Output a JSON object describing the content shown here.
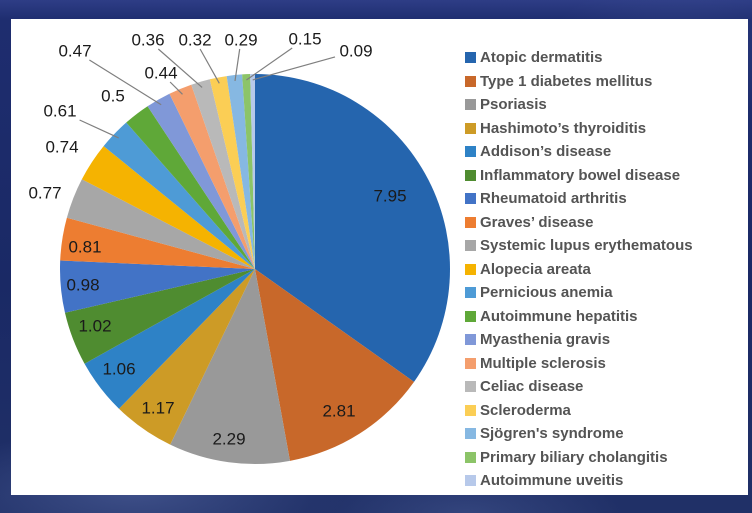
{
  "chart_data": {
    "type": "pie",
    "title": "",
    "categories": [
      "Atopic dermatitis",
      "Type 1 diabetes mellitus",
      "Psoriasis",
      "Hashimoto’s thyroiditis",
      "Addison’s disease",
      "Inflammatory bowel disease",
      "Rheumatoid arthritis",
      "Graves’ disease",
      "Systemic lupus erythematous",
      "Alopecia areata",
      "Pernicious anemia",
      "Autoimmune hepatitis",
      "Myasthenia gravis",
      "Multiple sclerosis",
      "Celiac disease",
      "Scleroderma",
      "Sjögren's syndrome",
      "Primary biliary cholangitis",
      "Autoimmune uveitis"
    ],
    "values": [
      7.95,
      2.81,
      2.29,
      1.17,
      1.06,
      1.02,
      0.98,
      0.81,
      0.77,
      0.74,
      0.61,
      0.5,
      0.47,
      0.44,
      0.36,
      0.32,
      0.29,
      0.15,
      0.09
    ],
    "colors": [
      "#2565AE",
      "#C8682A",
      "#999999",
      "#CD9B26",
      "#2E82C6",
      "#4F8C30",
      "#4273C6",
      "#ED7D31",
      "#A7A7A7",
      "#F5B301",
      "#4E9BD6",
      "#5FA838",
      "#8098D8",
      "#F49E6D",
      "#B9B9B9",
      "#FBCE55",
      "#86B8E2",
      "#8CC468",
      "#B7C9EA"
    ],
    "start_angle_deg": 0,
    "direction": "clockwise",
    "legend_position": "right",
    "data_labels": "values shown outside small slices and inside large slices"
  },
  "style": {
    "slide_background": "#1A2965",
    "panel_background": "#FFFFFF",
    "label_color": "#1A1A1A",
    "legend_text_color": "#545454",
    "leader_line_color": "#7F7F7F"
  }
}
